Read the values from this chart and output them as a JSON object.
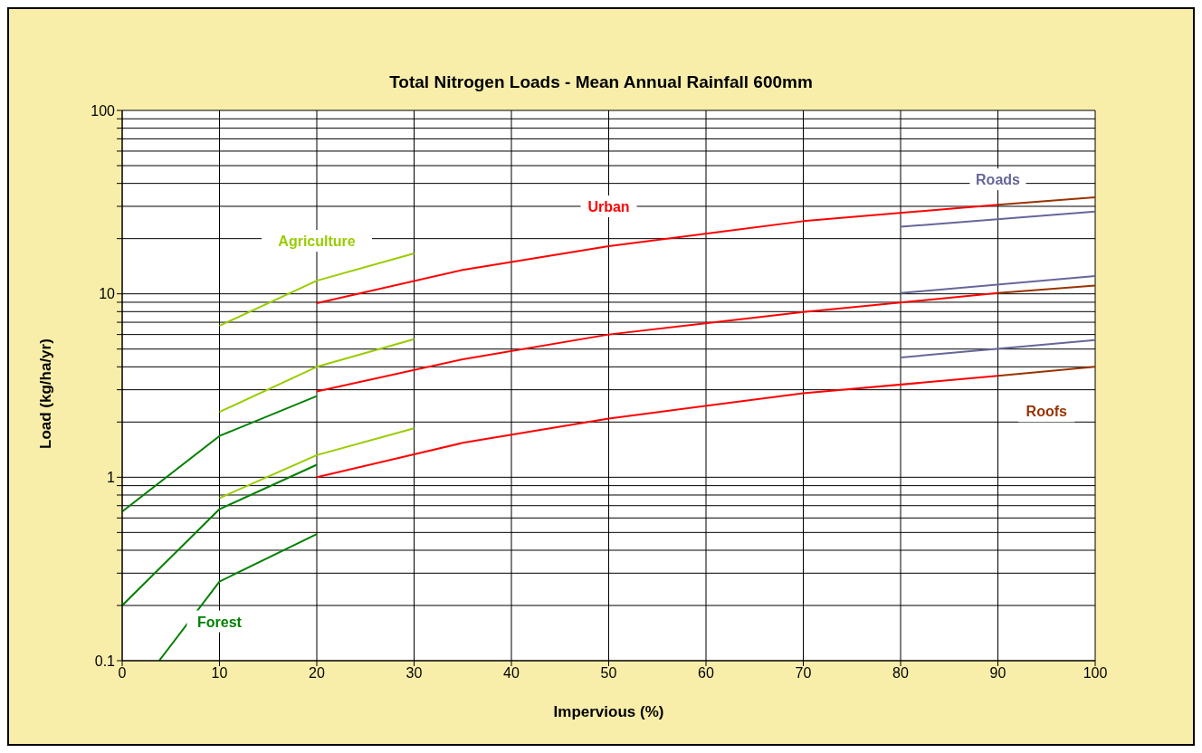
{
  "chart_data": {
    "type": "line",
    "title": "Total Nitrogen Loads - Mean Annual Rainfall 600mm",
    "xlabel": "Impervious (%)",
    "ylabel": "Load (kg/ha/yr)",
    "log": "y",
    "grid": true,
    "marker": "none",
    "line_style": "solid",
    "xlim": [
      0,
      100
    ],
    "xticks": [
      0,
      10,
      20,
      30,
      40,
      50,
      60,
      70,
      80,
      90,
      100
    ],
    "ylim": [
      0.1,
      100
    ],
    "yticks": [
      0.1,
      {
        "value": 0.2,
        "label": null
      },
      {
        "value": 0.3,
        "label": null
      },
      {
        "value": 0.4,
        "label": null
      },
      {
        "value": 0.5,
        "label": null
      },
      {
        "value": 0.6,
        "label": null
      },
      {
        "value": 0.7,
        "label": null
      },
      {
        "value": 0.8,
        "label": null
      },
      {
        "value": 0.9,
        "label": null
      },
      1,
      {
        "value": 2,
        "label": null
      },
      {
        "value": 3,
        "label": null
      },
      {
        "value": 4,
        "label": null
      },
      {
        "value": 5,
        "label": null
      },
      {
        "value": 6,
        "label": null
      },
      {
        "value": 7,
        "label": null
      },
      {
        "value": 8,
        "label": null
      },
      {
        "value": 9,
        "label": null
      },
      10,
      {
        "value": 20,
        "label": null
      },
      {
        "value": 30,
        "label": null
      },
      {
        "value": 40,
        "label": null
      },
      {
        "value": 50,
        "label": null
      },
      {
        "value": 60,
        "label": null
      },
      {
        "value": 70,
        "label": null
      },
      {
        "value": 80,
        "label": null
      },
      {
        "value": 90,
        "label": null
      },
      100
    ],
    "series": [
      {
        "name": "Agriculture",
        "color": "#99cc00",
        "x": [
          10,
          20,
          30
        ],
        "values": [
          6.7,
          11.8,
          16.6
        ]
      },
      {
        "color": "#99cc00",
        "x": [
          10,
          20,
          30
        ],
        "values": [
          2.27,
          4.0,
          5.66
        ]
      },
      {
        "color": "#99cc00",
        "x": [
          10,
          20,
          30
        ],
        "values": [
          0.77,
          1.32,
          1.85
        ]
      },
      {
        "color": "#008000",
        "x": [
          0,
          10,
          20
        ],
        "values": [
          0.65,
          1.68,
          2.77
        ]
      },
      {
        "color": "#008000",
        "x": [
          0,
          10,
          20
        ],
        "values": [
          0.2,
          0.67,
          1.17
        ]
      },
      {
        "name": "Forest",
        "color": "#008000",
        "x": [
          3.8,
          10,
          20
        ],
        "values": [
          0.1,
          0.27,
          0.49
        ]
      },
      {
        "name": "Urban",
        "color": "#ff0000",
        "x": [
          20,
          35,
          50,
          70,
          90
        ],
        "values": [
          8.9,
          13.5,
          18.2,
          24.9,
          30.6
        ]
      },
      {
        "color": "#ff0000",
        "x": [
          20,
          35,
          50,
          70,
          90
        ],
        "values": [
          2.94,
          4.4,
          6.0,
          7.95,
          10.1
        ]
      },
      {
        "color": "#ff0000",
        "x": [
          20,
          35,
          50,
          70,
          90
        ],
        "values": [
          1.0,
          1.54,
          2.09,
          2.87,
          3.57
        ]
      },
      {
        "color": "#993300",
        "x": [
          90,
          100
        ],
        "values": [
          30.6,
          33.6
        ]
      },
      {
        "color": "#993300",
        "x": [
          90,
          100
        ],
        "values": [
          10.1,
          11.1
        ]
      },
      {
        "name": "Roofs",
        "color": "#993300",
        "x": [
          90,
          100
        ],
        "values": [
          3.57,
          4.0
        ]
      },
      {
        "name": "Roads",
        "color": "#666699",
        "x": [
          80,
          100
        ],
        "values": [
          23.2,
          28.1
        ]
      },
      {
        "color": "#666699",
        "x": [
          80,
          100
        ],
        "values": [
          10.1,
          12.5
        ]
      },
      {
        "color": "#666699",
        "x": [
          80,
          100
        ],
        "values": [
          4.5,
          5.6
        ]
      }
    ]
  }
}
